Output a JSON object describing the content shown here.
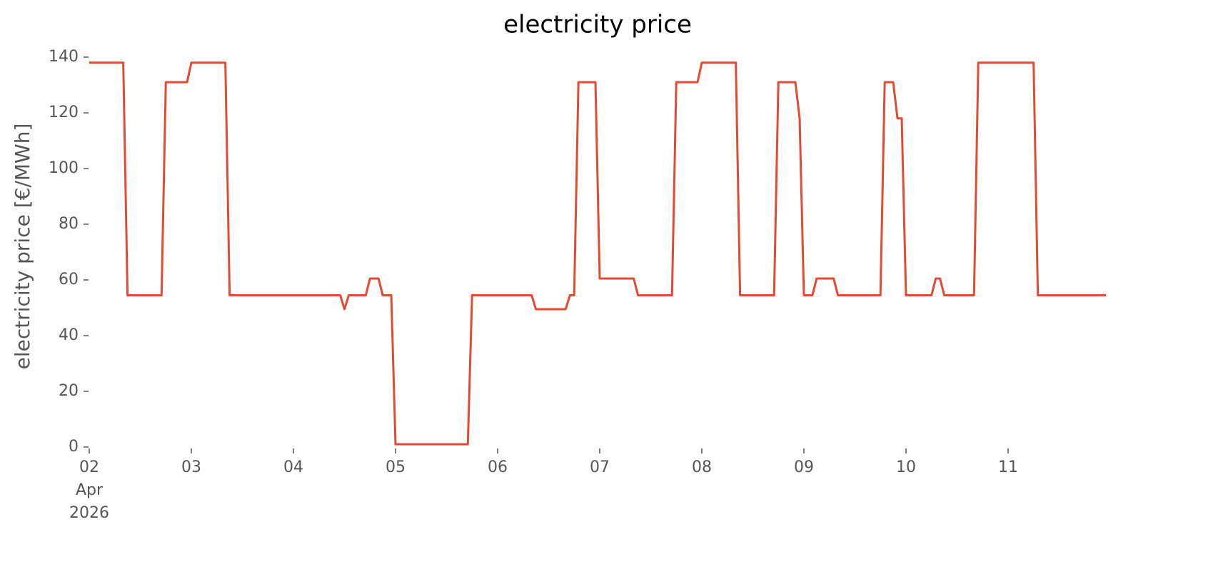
{
  "chart_data": {
    "type": "line",
    "title": "electricity price",
    "y_label": "electricity price [€/MWh]",
    "x": [
      "2026-04-02T00:00",
      "2026-04-02T08:00",
      "2026-04-02T09:00",
      "2026-04-02T17:00",
      "2026-04-02T18:00",
      "2026-04-02T23:00",
      "2026-04-03T00:00",
      "2026-04-03T08:00",
      "2026-04-03T09:00",
      "2026-04-04T11:00",
      "2026-04-04T12:00",
      "2026-04-04T13:00",
      "2026-04-04T17:00",
      "2026-04-04T18:00",
      "2026-04-04T20:00",
      "2026-04-04T21:00",
      "2026-04-04T23:00",
      "2026-04-05T00:00",
      "2026-04-05T17:00",
      "2026-04-05T18:00",
      "2026-04-06T08:00",
      "2026-04-06T09:00",
      "2026-04-06T16:00",
      "2026-04-06T17:00",
      "2026-04-06T18:00",
      "2026-04-06T19:00",
      "2026-04-06T23:00",
      "2026-04-07T00:00",
      "2026-04-07T08:00",
      "2026-04-07T09:00",
      "2026-04-07T17:00",
      "2026-04-07T18:00",
      "2026-04-07T23:00",
      "2026-04-08T00:00",
      "2026-04-08T08:00",
      "2026-04-08T09:00",
      "2026-04-08T17:00",
      "2026-04-08T18:00",
      "2026-04-08T22:00",
      "2026-04-08T23:00",
      "2026-04-09T00:00",
      "2026-04-09T02:00",
      "2026-04-09T03:00",
      "2026-04-09T07:00",
      "2026-04-09T08:00",
      "2026-04-09T18:00",
      "2026-04-09T19:00",
      "2026-04-09T21:00",
      "2026-04-09T22:00",
      "2026-04-09T23:00",
      "2026-04-10T00:00",
      "2026-04-10T06:00",
      "2026-04-10T07:00",
      "2026-04-10T08:00",
      "2026-04-10T09:00",
      "2026-04-10T16:00",
      "2026-04-10T17:00",
      "2026-04-11T06:00",
      "2026-04-11T07:00",
      "2026-04-11T23:00"
    ],
    "series": [
      {
        "name": "electricity price",
        "color": "#e24a33",
        "values": [
          138,
          138,
          54.5,
          54.5,
          131,
          131,
          138,
          138,
          54.5,
          54.5,
          49.5,
          54.5,
          54.5,
          60.5,
          60.5,
          54.5,
          54.5,
          1,
          1,
          54.5,
          54.5,
          49.5,
          49.5,
          54.5,
          54.5,
          131,
          131,
          60.5,
          60.5,
          54.5,
          54.5,
          131,
          131,
          138,
          138,
          54.5,
          54.5,
          131,
          131,
          118,
          54.5,
          54.5,
          60.5,
          60.5,
          54.5,
          54.5,
          131,
          131,
          118,
          118,
          54.5,
          54.5,
          60.5,
          60.5,
          54.5,
          54.5,
          138,
          138,
          54.5,
          54.5
        ]
      }
    ],
    "xlim": [
      "2026-04-02T00:00",
      "2026-04-11T23:00"
    ],
    "xticks": [
      {
        "value": "2026-04-02T00:00",
        "label": "02\nApr\n2026"
      },
      {
        "value": "2026-04-03T00:00",
        "label": "03"
      },
      {
        "value": "2026-04-04T00:00",
        "label": "04"
      },
      {
        "value": "2026-04-05T00:00",
        "label": "05"
      },
      {
        "value": "2026-04-06T00:00",
        "label": "06"
      },
      {
        "value": "2026-04-07T00:00",
        "label": "07"
      },
      {
        "value": "2026-04-08T00:00",
        "label": "08"
      },
      {
        "value": "2026-04-09T00:00",
        "label": "09"
      },
      {
        "value": "2026-04-10T00:00",
        "label": "10"
      },
      {
        "value": "2026-04-11T00:00",
        "label": "11"
      }
    ],
    "ylim": [
      0,
      140
    ],
    "yticks": [
      0,
      20,
      40,
      60,
      80,
      100,
      120,
      140
    ],
    "grid": false
  }
}
